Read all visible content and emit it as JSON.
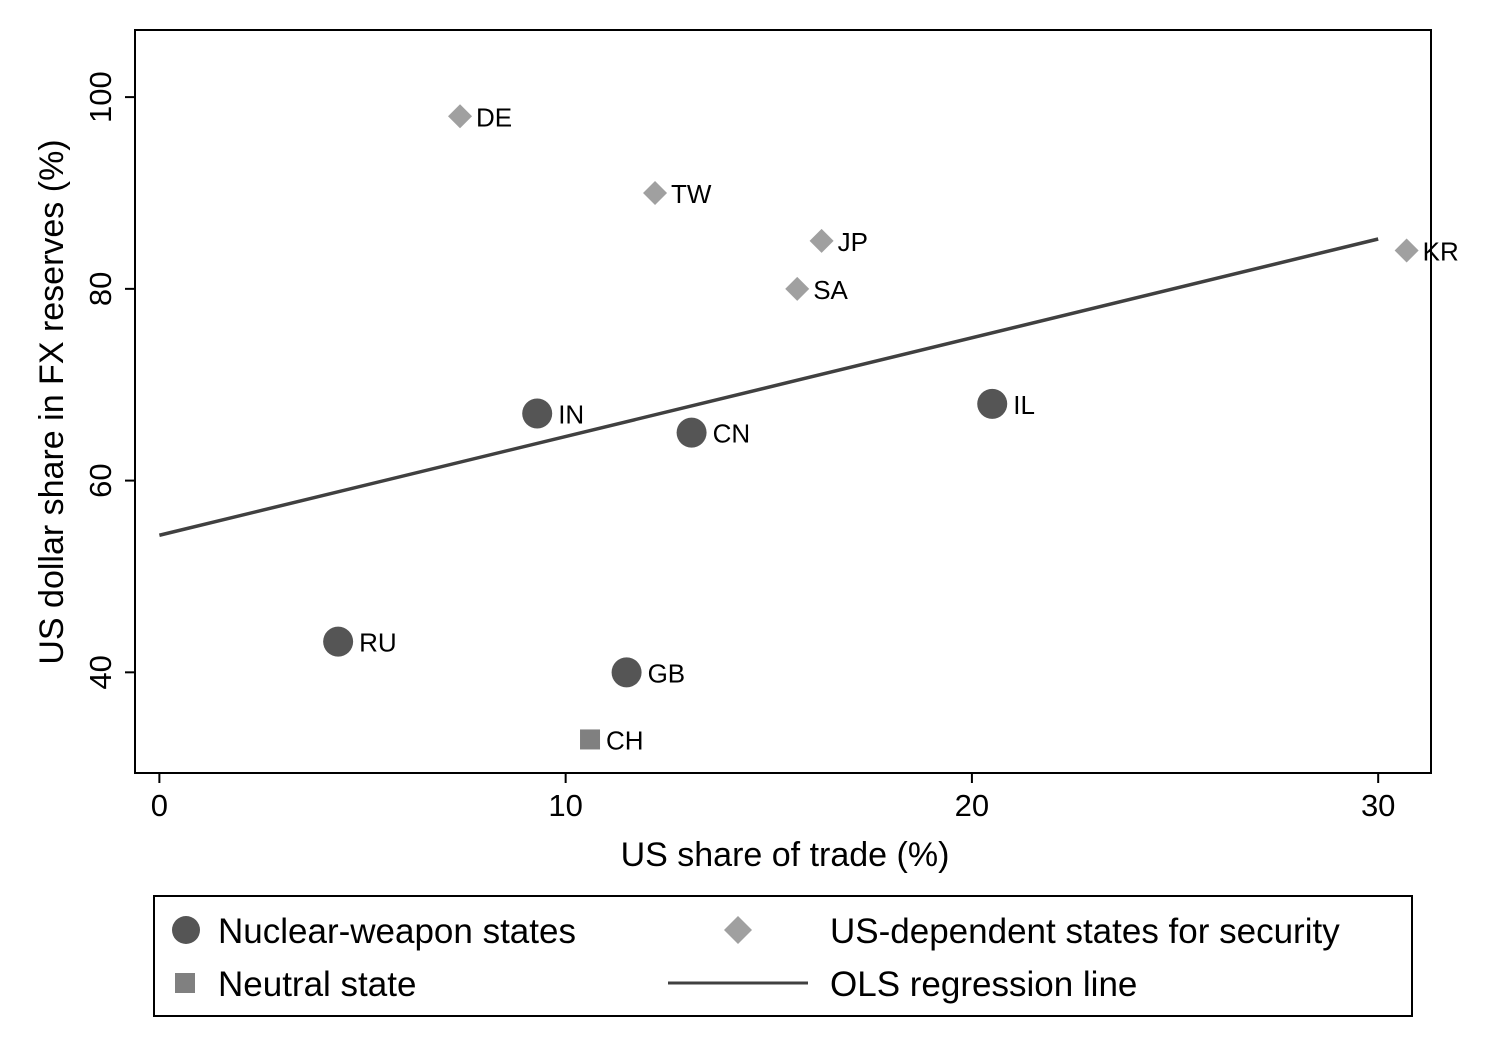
{
  "chart_data": {
    "type": "scatter",
    "xlabel": "US share of trade (%)",
    "ylabel": "US dollar share in FX reserves (%)",
    "xlim": [
      -0.6,
      31.3
    ],
    "ylim": [
      29.5,
      107
    ],
    "xticks": [
      0,
      10,
      20,
      30
    ],
    "yticks": [
      40,
      60,
      80,
      100
    ],
    "grid": false,
    "legend_position": "bottom",
    "series": [
      {
        "name": "Nuclear-weapon states",
        "marker": "circle",
        "color": "#555555",
        "points": [
          {
            "label": "IN",
            "x": 9.3,
            "y": 67
          },
          {
            "label": "CN",
            "x": 13.1,
            "y": 65
          },
          {
            "label": "IL",
            "x": 20.5,
            "y": 68
          },
          {
            "label": "RU",
            "x": 4.4,
            "y": 43.2
          },
          {
            "label": "GB",
            "x": 11.5,
            "y": 40
          }
        ]
      },
      {
        "name": "US-dependent states for security",
        "marker": "diamond",
        "color": "#a0a0a0",
        "points": [
          {
            "label": "DE",
            "x": 7.4,
            "y": 98
          },
          {
            "label": "TW",
            "x": 12.2,
            "y": 90
          },
          {
            "label": "JP",
            "x": 16.3,
            "y": 85
          },
          {
            "label": "SA",
            "x": 15.7,
            "y": 80
          },
          {
            "label": "KR",
            "x": 30.7,
            "y": 84
          }
        ]
      },
      {
        "name": "Neutral state",
        "marker": "square",
        "color": "#808080",
        "points": [
          {
            "label": "CH",
            "x": 10.6,
            "y": 33
          }
        ]
      }
    ],
    "regression": {
      "name": "OLS regression line",
      "color": "#404040",
      "x": [
        0,
        30
      ],
      "y": [
        54.3,
        85.2
      ]
    }
  }
}
